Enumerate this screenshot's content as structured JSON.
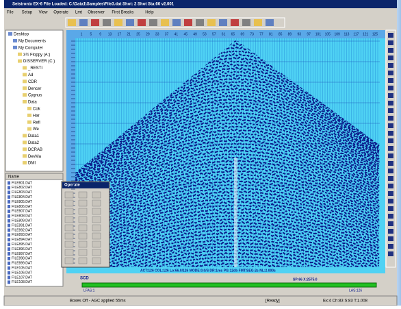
{
  "title": "Seistronix EX-6    File Loaded: C:\\Data1\\Samples\\File3.dat    Shot: 2    Shot Sta:66    v2.001",
  "menu": [
    "File",
    "Setup",
    "View",
    "Operate",
    "Lmt",
    "Observer",
    "First Breaks",
    "Help"
  ],
  "tree": [
    "Desktop",
    "My Documents",
    "My Computer",
    "3½ Floppy (A:)",
    "DISSERVER (C:)",
    "_RESTI",
    "Ad",
    "CDR",
    "Dencer",
    "Cygnus",
    "Data",
    "Cok",
    "Har",
    "Refl",
    "We",
    "Data1",
    "Data2",
    "DCRAB",
    "DevMa",
    "DMI"
  ],
  "files": {
    "header": "Name",
    "items": [
      "FILE801.DAT",
      "FILE802.DAT",
      "FILE803.DAT",
      "FILE804.DAT",
      "FILE805.DAT",
      "FILE806.DAT",
      "FILE807.DAT",
      "FILE808.DAT",
      "FILE809.DAT",
      "FILE891.DAT",
      "FILE892.DAT",
      "FILE893.DAT",
      "FILE894.DAT",
      "FILE895.DAT",
      "FILE896.DAT",
      "FILE897.DAT",
      "FILE898.DAT",
      "FILE899.DAT",
      "FILE105.DAT",
      "FILE106.DAT",
      "FILE107.DAT",
      "FILE108.DAT"
    ]
  },
  "operate": {
    "title": "Operate"
  },
  "ruler": {
    "traces": [
      "1",
      "5",
      "9",
      "13",
      "17",
      "21",
      "25",
      "29",
      "33",
      "37",
      "41",
      "45",
      "49",
      "53",
      "57",
      "61",
      "65",
      "69",
      "73",
      "77",
      "81",
      "85",
      "89",
      "93",
      "97",
      "101",
      "105",
      "109",
      "113",
      "117",
      "121",
      "125"
    ]
  },
  "info": "ACT:126  COL:126  Lo:66.0/126  MODE:0.0/S  DR:1ms  PG:12db  FMT:SEG-2s  NL:2.000s",
  "slider": {
    "scd": "SCD",
    "sp": "SP:66 X:2575.0",
    "lfas": "LFAS:1",
    "las": "LAS:126"
  },
  "status": [
    "Boxes Off - AGC applied 55ms",
    "[Ready]",
    "Ex:4  Ch:83  S:83  T:1.008"
  ]
}
